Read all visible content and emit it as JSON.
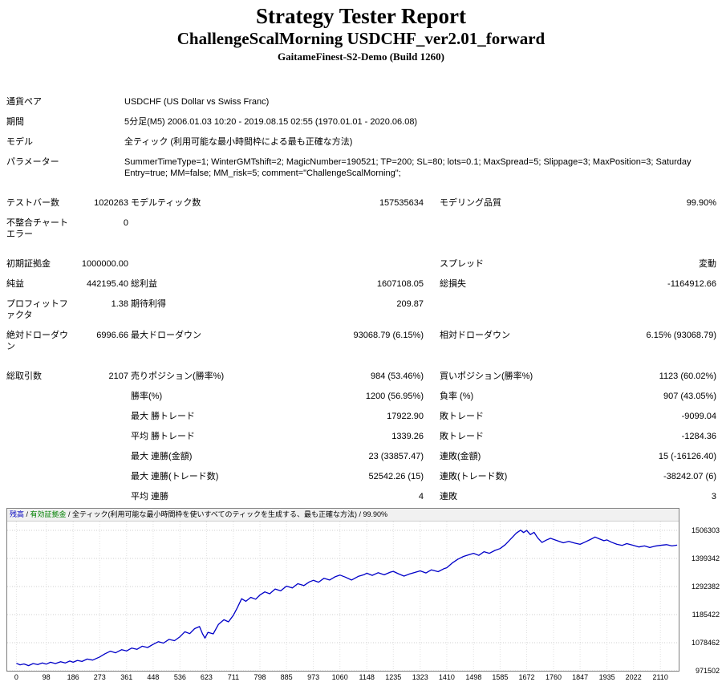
{
  "header": {
    "title": "Strategy Tester Report",
    "subtitle": "ChallengeScalMorning USDCHF_ver2.01_forward",
    "server": "GaitameFinest-S2-Demo (Build 1260)"
  },
  "info_rows": [
    {
      "label": "通貨ペア",
      "value": "USDCHF (US Dollar vs Swiss Franc)"
    },
    {
      "label": "期間",
      "value": "5分足(M5) 2006.01.03 10:20 - 2019.08.15 02:55 (1970.01.01 - 2020.06.08)"
    },
    {
      "label": "モデル",
      "value": "全ティック (利用可能な最小時間枠による最も正確な方法)"
    },
    {
      "label": "パラメーター",
      "value": "SummerTimeType=1; WinterGMTshift=2; MagicNumber=190521; TP=200; SL=80; lots=0.1; MaxSpread=5; Slippage=3; MaxPosition=3; SaturdayEntry=true; MM=false; MM_risk=5; comment=\"ChallengeScalMorning\";"
    }
  ],
  "stat_rows": [
    {
      "cells": [
        "テストバー数",
        "1020263",
        "モデルティック数",
        "157535634",
        "モデリング品質",
        "99.90%"
      ]
    },
    {
      "cells": [
        "不整合チャートエラー",
        "0",
        "",
        "",
        "",
        ""
      ]
    },
    {
      "gap": true,
      "cells": [
        "初期証拠金",
        "1000000.00",
        "",
        "",
        "スプレッド",
        "変動"
      ]
    },
    {
      "cells": [
        "純益",
        "442195.40",
        "総利益",
        "1607108.05",
        "総損失",
        "-1164912.66"
      ]
    },
    {
      "cells": [
        "プロフィットファクタ",
        "1.38",
        "期待利得",
        "209.87",
        "",
        ""
      ]
    },
    {
      "cells": [
        "絶対ドローダウン",
        "6996.66",
        "最大ドローダウン",
        "93068.79 (6.15%)",
        "相対ドローダウン",
        "6.15% (93068.79)"
      ]
    },
    {
      "gap": true,
      "cells": [
        "総取引数",
        "2107",
        "売りポジション(勝率%)",
        "984 (53.46%)",
        "買いポジション(勝率%)",
        "1123 (60.02%)"
      ]
    },
    {
      "cells": [
        "",
        "",
        "勝率(%)",
        "1200 (56.95%)",
        "負率 (%)",
        "907 (43.05%)"
      ]
    },
    {
      "cells": [
        "",
        "",
        "最大 勝トレード",
        "17922.90",
        "敗トレード",
        "-9099.04"
      ]
    },
    {
      "cells": [
        "",
        "",
        "平均 勝トレード",
        "1339.26",
        "敗トレード",
        "-1284.36"
      ]
    },
    {
      "cells": [
        "",
        "",
        "最大 連勝(金額)",
        "23 (33857.47)",
        "連敗(金額)",
        "15 (-16126.40)"
      ]
    },
    {
      "cells": [
        "",
        "",
        "最大 連勝(トレード数)",
        "52542.26 (15)",
        "連敗(トレード数)",
        "-38242.07 (6)"
      ]
    },
    {
      "cells": [
        "",
        "",
        "平均 連勝",
        "4",
        "連敗",
        "3"
      ]
    }
  ],
  "chart": {
    "legend": [
      {
        "name": "legend-balance",
        "text": "残高",
        "color": "#0000c0"
      },
      {
        "name": "legend-separator",
        "text": " / ",
        "color": "#000000"
      },
      {
        "name": "legend-equity",
        "text": "有効証拠金",
        "color": "#008000"
      },
      {
        "name": "legend-description",
        "text": " / 全ティック(利用可能な最小時間枠を使いすべてのティックを生成する、最も正確な方法) / 99.90%",
        "color": "#000000"
      }
    ],
    "chart_data": {
      "type": "line",
      "title": "",
      "xlabel": "",
      "ylabel": "",
      "grid": true,
      "x_range": [
        -30,
        2170
      ],
      "y_range": [
        971502,
        1539900
      ],
      "x_ticks": [
        0,
        98,
        186,
        273,
        361,
        448,
        536,
        623,
        711,
        798,
        885,
        973,
        1060,
        1148,
        1235,
        1323,
        1410,
        1498,
        1585,
        1672,
        1760,
        1847,
        1935,
        2022,
        2110
      ],
      "y_ticks": [
        971502,
        1078462,
        1185422,
        1292382,
        1399342,
        1506303
      ],
      "series": [
        {
          "name": "残高",
          "color": "#0000c8",
          "points": [
            [
              0,
              1000000
            ],
            [
              12,
              994000
            ],
            [
              25,
              997500
            ],
            [
              40,
              991000
            ],
            [
              55,
              999000
            ],
            [
              70,
              995000
            ],
            [
              85,
              1001000
            ],
            [
              98,
              997000
            ],
            [
              112,
              1004000
            ],
            [
              128,
              999000
            ],
            [
              145,
              1006000
            ],
            [
              160,
              1001000
            ],
            [
              175,
              1008500
            ],
            [
              186,
              1004000
            ],
            [
              200,
              1011000
            ],
            [
              215,
              1007000
            ],
            [
              232,
              1016000
            ],
            [
              250,
              1012000
            ],
            [
              273,
              1024000
            ],
            [
              290,
              1036000
            ],
            [
              308,
              1046000
            ],
            [
              325,
              1040000
            ],
            [
              345,
              1052000
            ],
            [
              361,
              1047000
            ],
            [
              378,
              1058000
            ],
            [
              395,
              1053000
            ],
            [
              412,
              1065000
            ],
            [
              430,
              1060000
            ],
            [
              448,
              1072000
            ],
            [
              465,
              1082000
            ],
            [
              482,
              1077000
            ],
            [
              500,
              1091000
            ],
            [
              518,
              1086000
            ],
            [
              536,
              1101000
            ],
            [
              552,
              1120000
            ],
            [
              568,
              1113000
            ],
            [
              584,
              1132000
            ],
            [
              600,
              1140000
            ],
            [
              610,
              1112000
            ],
            [
              618,
              1096000
            ],
            [
              628,
              1118000
            ],
            [
              645,
              1112000
            ],
            [
              662,
              1148000
            ],
            [
              680,
              1166000
            ],
            [
              695,
              1158000
            ],
            [
              711,
              1183000
            ],
            [
              724,
              1212000
            ],
            [
              738,
              1246000
            ],
            [
              752,
              1236000
            ],
            [
              768,
              1251000
            ],
            [
              784,
              1244000
            ],
            [
              798,
              1260000
            ],
            [
              814,
              1272000
            ],
            [
              830,
              1265000
            ],
            [
              848,
              1283000
            ],
            [
              866,
              1276000
            ],
            [
              885,
              1294000
            ],
            [
              904,
              1287000
            ],
            [
              922,
              1303000
            ],
            [
              942,
              1296000
            ],
            [
              960,
              1310000
            ],
            [
              973,
              1316000
            ],
            [
              990,
              1309000
            ],
            [
              1008,
              1324000
            ],
            [
              1026,
              1317000
            ],
            [
              1045,
              1330000
            ],
            [
              1060,
              1336000
            ],
            [
              1078,
              1328000
            ],
            [
              1098,
              1317000
            ],
            [
              1120,
              1331000
            ],
            [
              1140,
              1338000
            ],
            [
              1148,
              1343000
            ],
            [
              1166,
              1335000
            ],
            [
              1185,
              1345000
            ],
            [
              1205,
              1337000
            ],
            [
              1225,
              1347000
            ],
            [
              1235,
              1350000
            ],
            [
              1252,
              1341000
            ],
            [
              1270,
              1332000
            ],
            [
              1288,
              1340000
            ],
            [
              1305,
              1346000
            ],
            [
              1323,
              1352000
            ],
            [
              1342,
              1344000
            ],
            [
              1360,
              1356000
            ],
            [
              1382,
              1349000
            ],
            [
              1400,
              1360000
            ],
            [
              1410,
              1364000
            ],
            [
              1428,
              1382000
            ],
            [
              1446,
              1396000
            ],
            [
              1465,
              1407000
            ],
            [
              1482,
              1413000
            ],
            [
              1498,
              1419000
            ],
            [
              1515,
              1411000
            ],
            [
              1532,
              1425000
            ],
            [
              1550,
              1419000
            ],
            [
              1568,
              1430000
            ],
            [
              1585,
              1437000
            ],
            [
              1602,
              1452000
            ],
            [
              1620,
              1474000
            ],
            [
              1638,
              1496000
            ],
            [
              1652,
              1507000
            ],
            [
              1662,
              1498000
            ],
            [
              1672,
              1506000
            ],
            [
              1684,
              1490000
            ],
            [
              1696,
              1499000
            ],
            [
              1708,
              1478000
            ],
            [
              1722,
              1460000
            ],
            [
              1736,
              1469000
            ],
            [
              1750,
              1476000
            ],
            [
              1760,
              1472000
            ],
            [
              1775,
              1466000
            ],
            [
              1792,
              1459000
            ],
            [
              1810,
              1464000
            ],
            [
              1828,
              1458000
            ],
            [
              1847,
              1453000
            ],
            [
              1862,
              1461000
            ],
            [
              1880,
              1471000
            ],
            [
              1896,
              1481000
            ],
            [
              1910,
              1474000
            ],
            [
              1925,
              1467000
            ],
            [
              1935,
              1470000
            ],
            [
              1950,
              1461000
            ],
            [
              1968,
              1453000
            ],
            [
              1985,
              1449000
            ],
            [
              2000,
              1456000
            ],
            [
              2022,
              1449000
            ],
            [
              2040,
              1443000
            ],
            [
              2058,
              1447000
            ],
            [
              2075,
              1441000
            ],
            [
              2092,
              1446000
            ],
            [
              2110,
              1449000
            ],
            [
              2130,
              1452000
            ],
            [
              2148,
              1447000
            ],
            [
              2165,
              1450000
            ]
          ]
        }
      ]
    }
  }
}
